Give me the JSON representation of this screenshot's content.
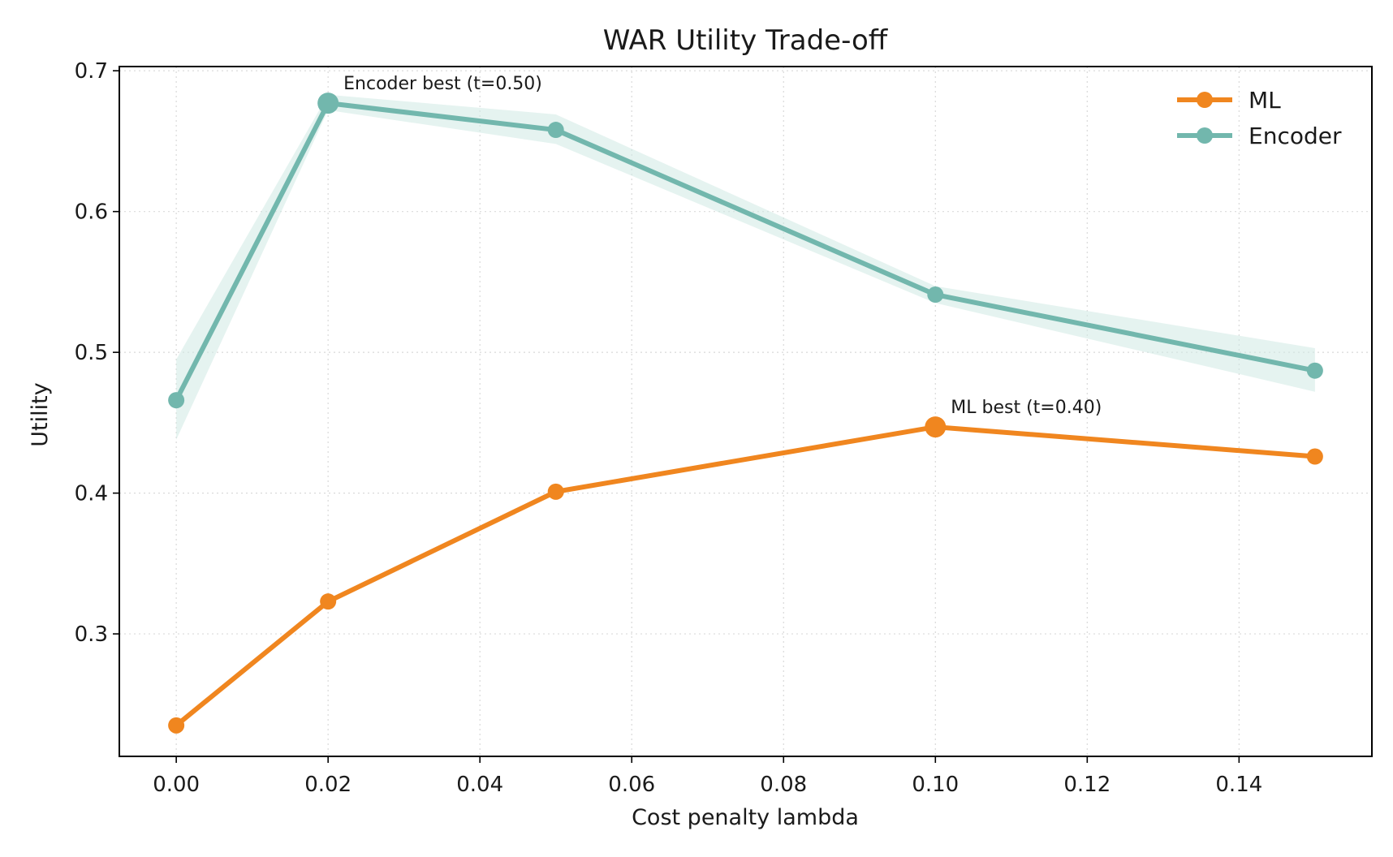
{
  "colors": {
    "ML": "#f0861f",
    "Encoder": "#72b7ad",
    "band": "#cfe9e3"
  },
  "chart_data": {
    "type": "line",
    "title": "WAR Utility Trade-off",
    "xlabel": "Cost penalty lambda",
    "ylabel": "Utility",
    "x": [
      0.0,
      0.02,
      0.05,
      0.1,
      0.15
    ],
    "xlim": [
      -0.0075,
      0.1575
    ],
    "ylim": [
      0.213,
      0.703
    ],
    "xticks": [
      0.0,
      0.02,
      0.04,
      0.06,
      0.08,
      0.1,
      0.12,
      0.14
    ],
    "xtick_labels": [
      "0.00",
      "0.02",
      "0.04",
      "0.06",
      "0.08",
      "0.10",
      "0.12",
      "0.14"
    ],
    "yticks": [
      0.3,
      0.4,
      0.5,
      0.6,
      0.7
    ],
    "ytick_labels": [
      "0.3",
      "0.4",
      "0.5",
      "0.6",
      "0.7"
    ],
    "grid": true,
    "legend_position": "top-right",
    "series": [
      {
        "name": "ML",
        "color_key": "ML",
        "values": [
          0.235,
          0.323,
          0.401,
          0.447,
          0.426
        ],
        "band_lower": null,
        "band_upper": null
      },
      {
        "name": "Encoder",
        "color_key": "Encoder",
        "values": [
          0.466,
          0.677,
          0.658,
          0.541,
          0.487
        ],
        "band_lower": [
          0.438,
          0.672,
          0.648,
          0.535,
          0.472
        ],
        "band_upper": [
          0.495,
          0.683,
          0.669,
          0.547,
          0.503
        ]
      }
    ],
    "annotations": [
      {
        "text": "Encoder best (t=0.50)",
        "series": "Encoder",
        "x": 0.02,
        "y": 0.677
      },
      {
        "text": "ML best (t=0.40)",
        "series": "ML",
        "x": 0.1,
        "y": 0.447
      }
    ]
  }
}
